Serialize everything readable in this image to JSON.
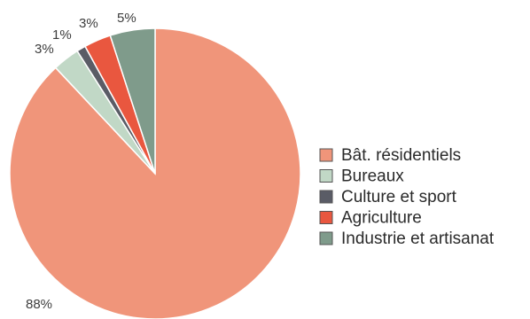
{
  "chart_data": {
    "type": "pie",
    "title": "",
    "legend_position": "right",
    "slices": [
      {
        "label": "Bât. résidentiels",
        "value": 88,
        "value_label": "88%",
        "color": "#f0957a"
      },
      {
        "label": "Bureaux",
        "value": 3,
        "value_label": "3%",
        "color": "#c1d8c6"
      },
      {
        "label": "Culture et sport",
        "value": 1,
        "value_label": "1%",
        "color": "#5a5c66"
      },
      {
        "label": "Agriculture",
        "value": 3,
        "value_label": "3%",
        "color": "#e9573f"
      },
      {
        "label": "Industrie et artisanat",
        "value": 5,
        "value_label": "5%",
        "color": "#7f9b8b"
      }
    ]
  }
}
